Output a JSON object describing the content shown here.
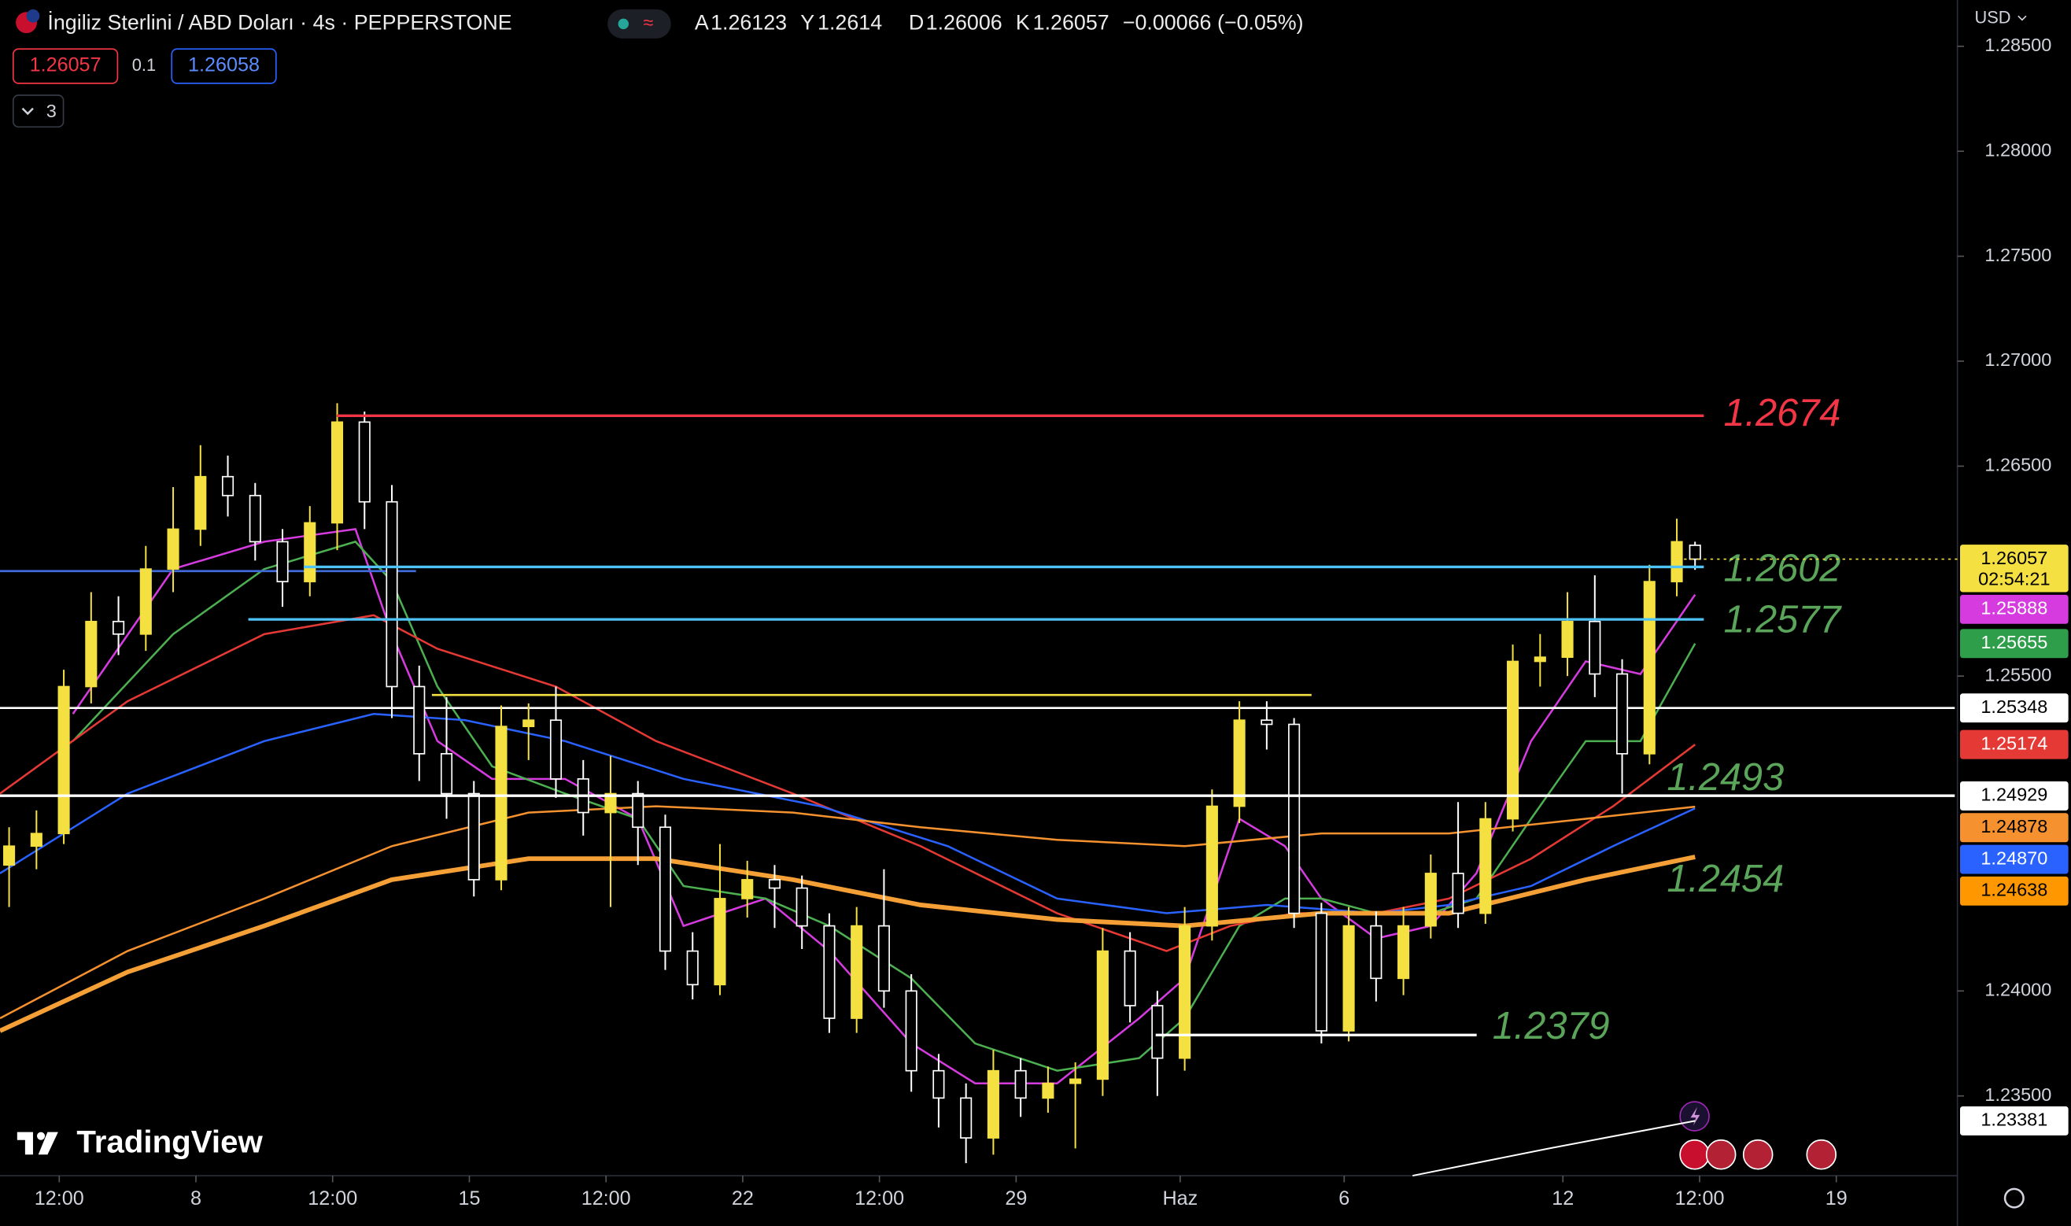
{
  "header": {
    "symbol": "İngiliz Sterlini / ABD Doları · 4s · PEPPERSTONE",
    "open_label": "A",
    "high_label": "Y",
    "low_label": "D",
    "close_label": "K",
    "change": "−0.00066 (−0.05%)",
    "spread": "0.1",
    "buy_price": "1.26058",
    "indicator_count": "3",
    "currency": "USD",
    "countdown": "02:54:21",
    "logo": "TradingView"
  },
  "chart_data": {
    "type": "candlestick",
    "up_color": "#f5e042",
    "down_color": "#ffffff",
    "xlim": [
      0,
      214.5
    ],
    "ylim": [
      1.2312,
      1.2872
    ],
    "xticks": [
      {
        "value": 6.5,
        "label": "12:00"
      },
      {
        "value": 21.5,
        "label": "8"
      },
      {
        "value": 36.5,
        "label": "12:00"
      },
      {
        "value": 51.5,
        "label": "15"
      },
      {
        "value": 66.5,
        "label": "12:00"
      },
      {
        "value": 81.5,
        "label": "22"
      },
      {
        "value": 96.5,
        "label": "12:00"
      },
      {
        "value": 111.5,
        "label": "29"
      },
      {
        "value": 129.5,
        "label": "Haz"
      },
      {
        "value": 147.5,
        "label": "6"
      },
      {
        "value": 171.5,
        "label": "12"
      },
      {
        "value": 186.5,
        "label": "12:00"
      },
      {
        "value": 201.5,
        "label": "19"
      }
    ],
    "yticks": [
      {
        "value": 1.285,
        "label": "1.28500"
      },
      {
        "value": 1.28,
        "label": "1.28000"
      },
      {
        "value": 1.275,
        "label": "1.27500"
      },
      {
        "value": 1.27,
        "label": "1.27000"
      },
      {
        "value": 1.265,
        "label": "1.26500"
      },
      {
        "value": 1.255,
        "label": "1.25500"
      },
      {
        "value": 1.24,
        "label": "1.24000"
      },
      {
        "value": 1.235,
        "label": "1.23500"
      }
    ],
    "x": [
      1,
      4,
      7,
      10,
      13,
      16,
      19,
      22,
      25,
      28,
      31,
      34,
      37,
      40,
      43,
      46,
      49,
      52,
      55,
      58,
      61,
      64,
      67,
      70,
      73,
      76,
      79,
      82,
      85,
      88,
      91,
      94,
      97,
      100,
      103,
      106,
      109,
      112,
      115,
      118,
      121,
      124,
      127,
      130,
      133,
      136,
      139,
      142,
      145,
      148,
      151,
      154,
      157,
      160,
      163,
      166,
      169,
      172,
      175,
      178,
      181,
      184,
      186
    ],
    "open": [
      1.246,
      1.2469,
      1.2475,
      1.2545,
      1.2576,
      1.257,
      1.2601,
      1.262,
      1.2645,
      1.2636,
      1.2614,
      1.2595,
      1.2623,
      1.2671,
      1.2633,
      1.2545,
      1.2513,
      1.2494,
      1.2453,
      1.2526,
      1.2529,
      1.2501,
      1.2485,
      1.2494,
      1.2478,
      1.2419,
      1.2403,
      1.2444,
      1.2453,
      1.2449,
      1.2431,
      1.2387,
      1.2431,
      1.24,
      1.2362,
      1.2349,
      1.233,
      1.2362,
      1.2349,
      1.2356,
      1.2358,
      1.2419,
      1.2393,
      1.2368,
      1.2431,
      1.2488,
      1.2529,
      1.2527,
      1.2437,
      1.2381,
      1.2431,
      1.2406,
      1.2431,
      1.2456,
      1.2437,
      1.2482,
      1.2557,
      1.2559,
      1.2576,
      1.2551,
      1.2513,
      1.2595,
      1.26123
    ],
    "high": [
      1.2478,
      1.2486,
      1.2553,
      1.259,
      1.2588,
      1.2612,
      1.264,
      1.266,
      1.2655,
      1.2642,
      1.262,
      1.2631,
      1.268,
      1.2676,
      1.2641,
      1.2555,
      1.254,
      1.25,
      1.2536,
      1.2537,
      1.2545,
      1.251,
      1.2512,
      1.25,
      1.2484,
      1.2428,
      1.247,
      1.2462,
      1.246,
      1.2455,
      1.2437,
      1.244,
      1.2458,
      1.2408,
      1.237,
      1.2356,
      1.2372,
      1.2368,
      1.2364,
      1.2366,
      1.243,
      1.2428,
      1.24,
      1.244,
      1.2496,
      1.2538,
      1.2538,
      1.253,
      1.2442,
      1.244,
      1.2438,
      1.244,
      1.2465,
      1.249,
      1.249,
      1.2565,
      1.257,
      1.259,
      1.2598,
      1.2558,
      1.2603,
      1.2625,
      1.2614
    ],
    "low": [
      1.244,
      1.2458,
      1.247,
      1.2537,
      1.256,
      1.2562,
      1.259,
      1.2612,
      1.2626,
      1.2605,
      1.2583,
      1.2588,
      1.261,
      1.262,
      1.253,
      1.25,
      1.2482,
      1.2445,
      1.2448,
      1.251,
      1.2492,
      1.2474,
      1.244,
      1.246,
      1.241,
      1.2396,
      1.2398,
      1.2435,
      1.243,
      1.242,
      1.238,
      1.238,
      1.2392,
      1.2352,
      1.2335,
      1.2318,
      1.2322,
      1.234,
      1.2342,
      1.2325,
      1.235,
      1.2385,
      1.235,
      1.2362,
      1.2424,
      1.248,
      1.2515,
      1.243,
      1.2375,
      1.2376,
      1.2395,
      1.2398,
      1.2425,
      1.243,
      1.2432,
      1.2476,
      1.2545,
      1.255,
      1.254,
      1.2494,
      1.2508,
      1.2588,
      1.26006
    ],
    "close": [
      1.2469,
      1.2475,
      1.2545,
      1.2576,
      1.257,
      1.2601,
      1.262,
      1.2645,
      1.2636,
      1.2614,
      1.2595,
      1.2623,
      1.2671,
      1.2633,
      1.2545,
      1.2513,
      1.2494,
      1.2453,
      1.2526,
      1.2529,
      1.2501,
      1.2485,
      1.2494,
      1.2478,
      1.2419,
      1.2403,
      1.2444,
      1.2453,
      1.2449,
      1.2431,
      1.2387,
      1.2431,
      1.24,
      1.2362,
      1.2349,
      1.233,
      1.2362,
      1.2349,
      1.2356,
      1.2358,
      1.2419,
      1.2393,
      1.2368,
      1.2431,
      1.2488,
      1.2529,
      1.2527,
      1.2437,
      1.2381,
      1.2431,
      1.2406,
      1.2431,
      1.2456,
      1.2437,
      1.2482,
      1.2557,
      1.2559,
      1.2576,
      1.2551,
      1.2513,
      1.2595,
      1.2614,
      1.26057
    ],
    "lines": [
      {
        "color": "#d63be0",
        "width": 1.5,
        "x": [
          8,
          19,
          29,
          39,
          43,
          48,
          54,
          62,
          70,
          75,
          84,
          91,
          100,
          107,
          116,
          125,
          130,
          136,
          141,
          145,
          151,
          157,
          162,
          168,
          174,
          180,
          186
        ],
        "values": [
          1.2532,
          1.2601,
          1.2614,
          1.262,
          1.257,
          1.2519,
          1.2501,
          1.2501,
          1.2482,
          1.2431,
          1.2444,
          1.2419,
          1.2375,
          1.2356,
          1.2356,
          1.2387,
          1.2406,
          1.2482,
          1.2469,
          1.2444,
          1.2425,
          1.2431,
          1.2456,
          1.2519,
          1.2557,
          1.2551,
          1.25888
        ]
      },
      {
        "color": "#4caf50",
        "width": 1.5,
        "x": [
          8,
          19,
          29,
          39,
          43,
          48,
          54,
          62,
          70,
          75,
          84,
          91,
          100,
          107,
          116,
          125,
          130,
          136,
          141,
          145,
          151,
          157,
          162,
          168,
          174,
          180,
          186
        ],
        "values": [
          1.2519,
          1.257,
          1.2601,
          1.2614,
          1.2595,
          1.2545,
          1.2507,
          1.2494,
          1.2482,
          1.245,
          1.2444,
          1.2431,
          1.2406,
          1.2375,
          1.2362,
          1.2368,
          1.2387,
          1.2431,
          1.2444,
          1.2444,
          1.2437,
          1.2437,
          1.2444,
          1.2482,
          1.2519,
          1.2519,
          1.25655
        ]
      },
      {
        "color": "#e53935",
        "width": 1.5,
        "x": [
          0,
          14,
          29,
          41,
          48,
          61,
          72,
          87,
          101,
          116,
          128,
          135,
          142,
          151,
          159,
          168,
          177,
          186
        ],
        "values": [
          1.2494,
          1.2538,
          1.257,
          1.2579,
          1.2563,
          1.2545,
          1.2519,
          1.2494,
          1.2469,
          1.2437,
          1.2419,
          1.2431,
          1.2437,
          1.2437,
          1.2444,
          1.2463,
          1.2488,
          1.25174
        ]
      },
      {
        "color": "#2962ff",
        "width": 1.5,
        "x": [
          0,
          14,
          29,
          41,
          51,
          62,
          75,
          90,
          104,
          116,
          128,
          139,
          151,
          159,
          168,
          177,
          186
        ],
        "values": [
          1.2456,
          1.2494,
          1.2519,
          1.2532,
          1.2529,
          1.2519,
          1.2501,
          1.2488,
          1.2469,
          1.2444,
          1.2437,
          1.2441,
          1.2437,
          1.2441,
          1.245,
          1.2469,
          1.2487
        ]
      },
      {
        "color": "#f5922f",
        "width": 1.5,
        "x": [
          0,
          14,
          29,
          43,
          58,
          72,
          87,
          101,
          116,
          130,
          145,
          159,
          174,
          186
        ],
        "values": [
          1.2387,
          1.2419,
          1.2444,
          1.2469,
          1.2485,
          1.2488,
          1.2485,
          1.2478,
          1.2472,
          1.2469,
          1.2475,
          1.2475,
          1.2482,
          1.24878
        ]
      },
      {
        "color": "#f5a037",
        "width": 3.5,
        "x": [
          0,
          14,
          29,
          43,
          58,
          72,
          87,
          101,
          116,
          130,
          145,
          159,
          174,
          186
        ],
        "values": [
          1.2381,
          1.2409,
          1.2431,
          1.2453,
          1.2463,
          1.2463,
          1.2453,
          1.2441,
          1.2434,
          1.2431,
          1.2437,
          1.2437,
          1.2453,
          1.24638
        ]
      },
      {
        "color": "#ffffff",
        "width": 1.2,
        "x": [
          155,
          170,
          186
        ],
        "values": [
          1.2312,
          1.2325,
          1.23381
        ]
      }
    ],
    "price_levels": [
      {
        "value": 1.2674,
        "line_color": "#f23645",
        "label_color": "#f23645"
      },
      {
        "value": 1.2602,
        "line_color": "#4fc3f7",
        "label_color": "#5aa55a"
      },
      {
        "value": 1.2577,
        "line_color": "#4fc3f7",
        "label_color": "#5aa55a"
      },
      {
        "value": 1.2493,
        "line_color": "#ffffff",
        "label_color": "#5aa55a"
      },
      {
        "value": 1.2454,
        "line_color": null,
        "label_color": "#5aa55a"
      },
      {
        "value": 1.2379,
        "line_color": "#ffffff",
        "label_color": "#5aa55a"
      }
    ],
    "horizontal_lines": [
      {
        "value": 1.2541,
        "color": "#f5e042"
      },
      {
        "value": 1.25348,
        "color": "#ffffff"
      },
      {
        "value": 1.26,
        "color": "#3f6ad8"
      }
    ],
    "price_badges": [
      {
        "value": 1.25888,
        "label": "1.25888",
        "color": "#d63be0",
        "text_color": "#ffffff"
      },
      {
        "value": 1.25655,
        "label": "1.25655",
        "color": "#2e9e4a",
        "text_color": "#ffffff"
      },
      {
        "value": 1.25348,
        "label": "1.25348",
        "color": "#ffffff",
        "text_color": "#000000"
      },
      {
        "value": 1.25174,
        "label": "1.25174",
        "color": "#e53935",
        "text_color": "#ffffff"
      },
      {
        "value": 1.24929,
        "label": "1.24929",
        "color": "#ffffff",
        "text_color": "#000000"
      },
      {
        "value": 1.24878,
        "label": "1.24878",
        "color": "#f5922f",
        "text_color": "#000000"
      },
      {
        "value": 1.2487,
        "label": "1.24870",
        "color": "#2962ff",
        "text_color": "#ffffff"
      },
      {
        "value": 1.24638,
        "label": "1.24638",
        "color": "#ff9800",
        "text_color": "#000000"
      },
      {
        "value": 1.23381,
        "label": "1.23381",
        "color": "#ffffff",
        "text_color": "#000000"
      }
    ]
  }
}
